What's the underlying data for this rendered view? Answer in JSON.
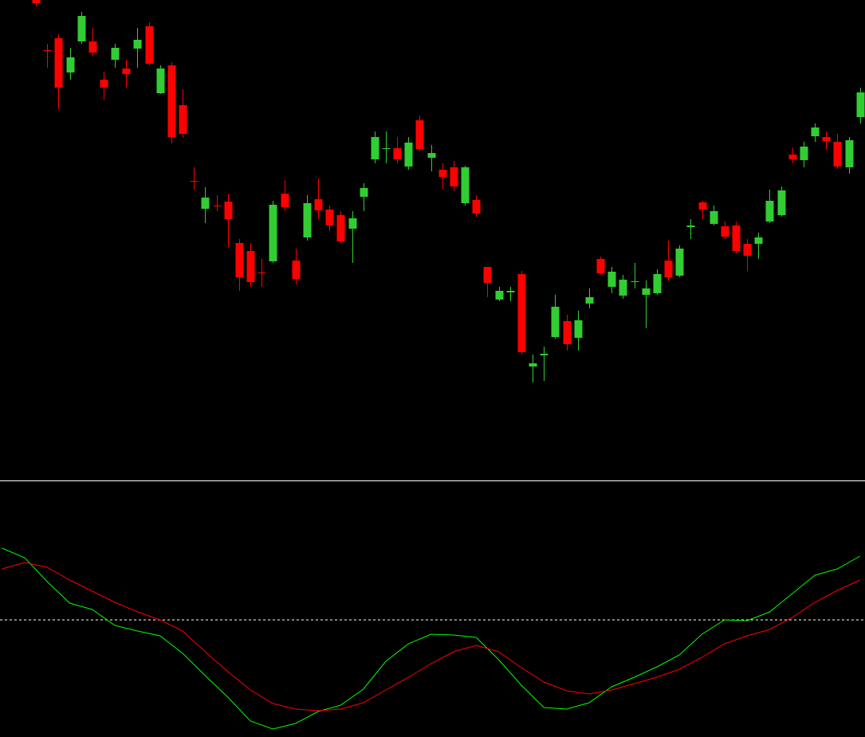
{
  "chart_data": [
    {
      "type": "candlestick",
      "x": [
        0,
        1,
        2,
        3,
        4,
        5,
        6,
        7,
        8,
        9,
        10,
        11,
        12,
        13,
        14,
        15,
        16,
        17,
        18,
        19,
        20,
        21,
        22,
        23,
        24,
        25,
        26,
        27,
        28,
        29,
        30,
        31,
        32,
        33,
        34,
        35,
        36,
        37,
        38,
        39,
        40,
        41,
        42,
        43,
        44,
        45,
        46,
        47,
        48,
        49,
        50,
        51,
        52,
        53,
        54,
        55,
        56,
        57,
        58,
        59,
        60,
        61,
        62,
        63,
        64,
        65,
        66,
        67,
        68,
        69,
        70,
        71,
        72,
        73
      ],
      "open": [
        600,
        537,
        552,
        509,
        548,
        548,
        500,
        525,
        514,
        539,
        567,
        483,
        518,
        468,
        373,
        338,
        342,
        347,
        295,
        285,
        258,
        272,
        357,
        273,
        302,
        350,
        337,
        330,
        313,
        353,
        400,
        413,
        414,
        391,
        449,
        402,
        387,
        390,
        345,
        349,
        265,
        224,
        233,
        256,
        140,
        154,
        177,
        197,
        176,
        219,
        275,
        240,
        229,
        246,
        230,
        232,
        273,
        254,
        315,
        346,
        319,
        316,
        317,
        294,
        294,
        322,
        330,
        406,
        399,
        429,
        428,
        422,
        390,
        453
      ],
      "high": [
        600,
        545,
        557,
        540,
        585,
        565,
        510,
        545,
        525,
        565,
        572,
        518,
        522,
        488,
        390,
        365,
        355,
        357,
        300,
        295,
        275,
        348,
        374,
        288,
        355,
        376,
        342,
        335,
        335,
        370,
        435,
        435,
        428,
        428,
        455,
        418,
        395,
        398,
        392,
        355,
        265,
        240,
        240,
        260,
        155,
        165,
        230,
        205,
        210,
        238,
        278,
        265,
        255,
        270,
        248,
        262,
        298,
        292,
        325,
        348,
        342,
        322,
        322,
        300,
        308,
        362,
        366,
        415,
        422,
        445,
        435,
        432,
        428,
        490
      ],
      "low": [
        592,
        515,
        463,
        500,
        545,
        530,
        475,
        515,
        490,
        515,
        518,
        482,
        420,
        427,
        362,
        320,
        335,
        290,
        235,
        240,
        240,
        270,
        335,
        243,
        298,
        325,
        310,
        295,
        270,
        335,
        395,
        395,
        395,
        387,
        410,
        385,
        362,
        360,
        342,
        328,
        227,
        222,
        222,
        155,
        120,
        122,
        175,
        160,
        160,
        213,
        255,
        232,
        225,
        238,
        188,
        230,
        248,
        252,
        300,
        325,
        317,
        300,
        282,
        260,
        275,
        320,
        328,
        395,
        390,
        422,
        412,
        388,
        382,
        445
      ],
      "close": [
        596,
        536,
        490,
        528,
        580,
        534,
        490,
        540,
        507,
        550,
        520,
        514,
        428,
        432,
        372,
        352,
        341,
        325,
        252,
        246,
        257,
        343,
        340,
        250,
        345,
        336,
        317,
        297,
        326,
        364,
        428,
        414,
        400,
        421,
        413,
        408,
        378,
        366,
        390,
        332,
        245,
        235,
        235,
        158,
        144,
        156,
        215,
        168,
        198,
        227,
        257,
        259,
        249,
        247,
        238,
        256,
        252,
        288,
        317,
        337,
        335,
        303,
        285,
        279,
        302,
        348,
        361,
        400,
        416,
        440,
        423,
        391,
        424,
        484
      ],
      "up_color": "#32cd32",
      "down_color": "#ff0000",
      "xlim": [
        -3.18,
        73.44
      ],
      "ylim": [
        0,
        600
      ]
    },
    {
      "type": "line",
      "x": [
        -3,
        -1,
        1,
        3,
        5,
        7,
        9,
        11,
        13,
        15,
        17,
        19,
        21,
        23,
        25,
        27,
        29,
        31,
        33,
        35,
        37,
        39,
        41,
        43,
        45,
        47,
        49,
        51,
        53,
        55,
        57,
        59,
        61,
        63,
        65,
        67,
        69,
        71,
        73
      ],
      "series": [
        {
          "color": "#00ff00",
          "values": [
            90,
            78,
            48,
            21,
            13,
            -7,
            -14,
            -20,
            -42,
            -70,
            -97,
            -127,
            -137,
            -130,
            -115,
            -107,
            -87,
            -52,
            -30,
            -18,
            -19,
            -22,
            -50,
            -82,
            -110,
            -112,
            -104,
            -84,
            -72,
            -59,
            -44,
            -18,
            0,
            -1,
            10,
            33,
            56,
            64,
            80
          ]
        },
        {
          "color": "#ff0000",
          "values": [
            64,
            72,
            66,
            50,
            36,
            22,
            10,
            0,
            -14,
            -40,
            -65,
            -88,
            -105,
            -112,
            -114,
            -112,
            -104,
            -88,
            -72,
            -55,
            -40,
            -32,
            -40,
            -60,
            -78,
            -89,
            -93,
            -88,
            -80,
            -72,
            -62,
            -47,
            -30,
            -20,
            -12,
            3,
            22,
            37,
            50
          ]
        }
      ],
      "hline": 0,
      "xlim": [
        -3.18,
        73.44
      ],
      "ylim": [
        -147,
        175
      ]
    }
  ]
}
